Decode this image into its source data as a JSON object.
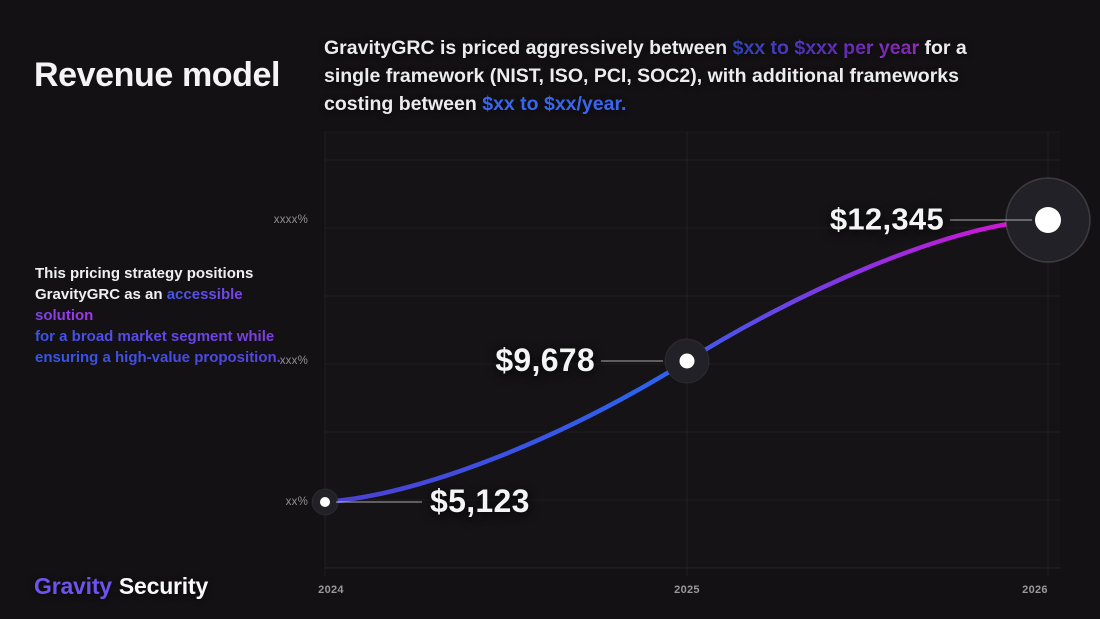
{
  "slide": {
    "title": "Revenue model",
    "headline": {
      "part1": "GravityGRC is priced aggressively between ",
      "highlight1": "$xx to $xxx per year",
      "part2": " for a single framework (NIST, ISO, PCI, SOC2), with additional frameworks costing between ",
      "highlight2": "$xx to $xx/year."
    },
    "note": {
      "line1": "This pricing strategy positions",
      "line2_white": "GravityGRC as an ",
      "line2_colored": "accessible solution",
      "line3": "for a broad market segment while",
      "line4": "ensuring a high-value proposition."
    },
    "logo": {
      "brand": "Gravity",
      "name": "Security"
    },
    "colors": {
      "background": "#131114",
      "accent_blue": "#3e57ea",
      "accent_purple": "#b636e8",
      "highlight_blue": "#3a66ee",
      "brand_purple": "#6e54ee"
    }
  },
  "chart_data": {
    "type": "line",
    "title": "",
    "x": [
      "2024",
      "2025",
      "2026"
    ],
    "series": [
      {
        "name": "",
        "values": [
          5123,
          9678,
          12345
        ]
      }
    ],
    "point_labels": [
      "$5,123",
      "$9,678",
      "$12,345"
    ],
    "y_tick_labels": [
      "xx%",
      "xxx%",
      "xxxx%"
    ],
    "xlabel": "",
    "ylabel": "",
    "grid": true,
    "legend": false,
    "style": {
      "line_gradient": [
        "#4e3fd4",
        "#2c63ee",
        "#8c32e2",
        "#e210d2"
      ],
      "dot_fill": "#222127",
      "dot_core": "#ffffff",
      "grid_color": "#ffffff"
    }
  }
}
